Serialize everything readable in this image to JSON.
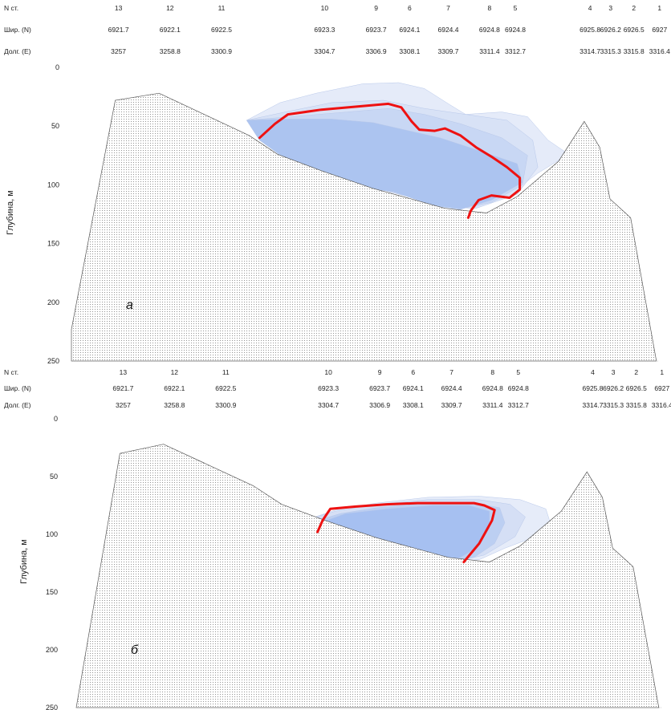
{
  "chart_data": [
    {
      "type": "area",
      "panel_label": "а",
      "header": {
        "row_labels": [
          "N ст.",
          "Шир. (N)",
          "Долг. (E)"
        ],
        "stations": [
          {
            "n": "13",
            "lat": "6921.7",
            "lon": "3257",
            "x": 0
          },
          {
            "n": "12",
            "lat": "6922.1",
            "lon": "3258.8",
            "x": 1
          },
          {
            "n": "11",
            "lat": "6922.5",
            "lon": "3300.9",
            "x": 2
          },
          {
            "n": "10",
            "lat": "6923.3",
            "lon": "3304.7",
            "x": 4
          },
          {
            "n": "9",
            "lat": "6923.7",
            "lon": "3306.9",
            "x": 5
          },
          {
            "n": "6",
            "lat": "6924.1",
            "lon": "3308.1",
            "x": 5.65
          },
          {
            "n": "7",
            "lat": "6924.4",
            "lon": "3309.7",
            "x": 6.4
          },
          {
            "n": "8",
            "lat": "6924.8",
            "lon": "3311.4",
            "x": 7.2
          },
          {
            "n": "5",
            "lat": "6924.8",
            "lon": "3312.7",
            "x": 7.7
          },
          {
            "n": "4",
            "lat": "6925.8",
            "lon": "3314.7",
            "x": 9.15
          },
          {
            "n": "3",
            "lat": "6926.2",
            "lon": "3315.3",
            "x": 9.55
          },
          {
            "n": "2",
            "lat": "6926.5",
            "lon": "3315.8",
            "x": 10.0
          },
          {
            "n": "1",
            "lat": "6927",
            "lon": "3316.4",
            "x": 10.5
          }
        ]
      },
      "ylabel": "Глубина, м",
      "ylim": [
        0,
        250
      ],
      "y_reversed": true,
      "yticks": [
        0,
        50,
        100,
        150,
        200,
        250
      ],
      "xlim": [
        -0.85,
        10.55
      ],
      "grid": false,
      "bottom": {
        "fill": "dotted",
        "outline": [
          [
            -0.85,
            223
          ],
          [
            0,
            28
          ],
          [
            0.85,
            22
          ],
          [
            2.6,
            58
          ],
          [
            3.15,
            74
          ],
          [
            4,
            88
          ],
          [
            5,
            103
          ],
          [
            6.4,
            120
          ],
          [
            7.2,
            124
          ],
          [
            7.8,
            110
          ],
          [
            8.6,
            80
          ],
          [
            9.1,
            46
          ],
          [
            9.4,
            68
          ],
          [
            9.6,
            112
          ],
          [
            10.0,
            128
          ],
          [
            10.5,
            250
          ]
        ]
      },
      "series": [
        {
          "color": "#e0e8f8",
          "opacity": 0.85,
          "points": [
            [
              2.55,
              45
            ],
            [
              3.2,
              30
            ],
            [
              3.9,
              22
            ],
            [
              4.8,
              14
            ],
            [
              5.5,
              13
            ],
            [
              6.0,
              18
            ],
            [
              6.5,
              32
            ],
            [
              6.8,
              40
            ],
            [
              7.5,
              38
            ],
            [
              8.0,
              42
            ],
            [
              8.4,
              62
            ],
            [
              8.8,
              74
            ],
            [
              8.2,
              90
            ],
            [
              7.6,
              110
            ],
            [
              6.9,
              120
            ],
            [
              6.4,
              118
            ],
            [
              5.5,
              108
            ],
            [
              4.8,
              100
            ],
            [
              4.1,
              88
            ],
            [
              3.3,
              76
            ],
            [
              2.8,
              62
            ]
          ]
        },
        {
          "color": "#d6e1f6",
          "opacity": 0.85,
          "points": [
            [
              2.55,
              45
            ],
            [
              3.3,
              38
            ],
            [
              4.2,
              30
            ],
            [
              5.2,
              28
            ],
            [
              6.0,
              35
            ],
            [
              6.8,
              40
            ],
            [
              7.6,
              45
            ],
            [
              8.1,
              62
            ],
            [
              8.2,
              85
            ],
            [
              7.8,
              108
            ],
            [
              7.0,
              120
            ],
            [
              6.4,
              118
            ],
            [
              5.5,
              108
            ],
            [
              4.8,
              100
            ],
            [
              4.1,
              88
            ],
            [
              3.3,
              76
            ],
            [
              2.8,
              62
            ]
          ]
        },
        {
          "color": "#c6d5f3",
          "opacity": 0.85,
          "points": [
            [
              2.55,
              45
            ],
            [
              3.4,
              42
            ],
            [
              4.5,
              38
            ],
            [
              5.3,
              35
            ],
            [
              6.0,
              40
            ],
            [
              6.7,
              48
            ],
            [
              7.5,
              60
            ],
            [
              8.0,
              75
            ],
            [
              7.9,
              100
            ],
            [
              7.3,
              115
            ],
            [
              6.7,
              120
            ],
            [
              6.1,
              116
            ],
            [
              5.4,
              106
            ],
            [
              4.7,
              100
            ],
            [
              4.0,
              88
            ],
            [
              3.3,
              76
            ],
            [
              2.8,
              62
            ]
          ]
        },
        {
          "color": "#a9c2f0",
          "opacity": 0.9,
          "points": [
            [
              2.55,
              45
            ],
            [
              3.3,
              44
            ],
            [
              4.2,
              44
            ],
            [
              5.0,
              47
            ],
            [
              5.6,
              53
            ],
            [
              6.3,
              60
            ],
            [
              7.0,
              70
            ],
            [
              7.8,
              82
            ],
            [
              7.9,
              98
            ],
            [
              7.3,
              113
            ],
            [
              6.7,
              121
            ],
            [
              6.2,
              118
            ],
            [
              5.4,
              106
            ],
            [
              4.7,
              102
            ],
            [
              4.0,
              90
            ],
            [
              3.3,
              78
            ],
            [
              2.8,
              62
            ]
          ]
        }
      ],
      "contour": {
        "color": "#ee1111",
        "points": [
          [
            2.8,
            60
          ],
          [
            3.1,
            48
          ],
          [
            3.35,
            40
          ],
          [
            4.0,
            36
          ],
          [
            5.3,
            31
          ],
          [
            5.55,
            34
          ],
          [
            5.75,
            46
          ],
          [
            5.9,
            53
          ],
          [
            6.2,
            54
          ],
          [
            6.4,
            52
          ],
          [
            6.7,
            58
          ],
          [
            7.0,
            68
          ],
          [
            7.3,
            76
          ],
          [
            7.6,
            85
          ],
          [
            7.85,
            94
          ],
          [
            7.85,
            104
          ],
          [
            7.65,
            111
          ],
          [
            7.3,
            109
          ],
          [
            7.05,
            113
          ],
          [
            6.9,
            122
          ],
          [
            6.85,
            128
          ]
        ]
      }
    },
    {
      "type": "area",
      "panel_label": "б",
      "header": {
        "row_labels": [
          "N ст.",
          "Шир. (N)",
          "Долг. (E)"
        ],
        "stations": [
          {
            "n": "13",
            "lat": "6921.7",
            "lon": "3257",
            "x": 0
          },
          {
            "n": "12",
            "lat": "6922.1",
            "lon": "3258.8",
            "x": 1
          },
          {
            "n": "11",
            "lat": "6922.5",
            "lon": "3300.9",
            "x": 2
          },
          {
            "n": "10",
            "lat": "6923.3",
            "lon": "3304.7",
            "x": 4
          },
          {
            "n": "9",
            "lat": "6923.7",
            "lon": "3306.9",
            "x": 5
          },
          {
            "n": "6",
            "lat": "6924.1",
            "lon": "3308.1",
            "x": 5.65
          },
          {
            "n": "7",
            "lat": "6924.4",
            "lon": "3309.7",
            "x": 6.4
          },
          {
            "n": "8",
            "lat": "6924.8",
            "lon": "3311.4",
            "x": 7.2
          },
          {
            "n": "5",
            "lat": "6924.8",
            "lon": "3312.7",
            "x": 7.7
          },
          {
            "n": "4",
            "lat": "6925.8",
            "lon": "3314.7",
            "x": 9.15
          },
          {
            "n": "3",
            "lat": "6926.2",
            "lon": "3315.3",
            "x": 9.55
          },
          {
            "n": "2",
            "lat": "6926.5",
            "lon": "3315.8",
            "x": 10.0
          },
          {
            "n": "1",
            "lat": "6927",
            "lon": "3316.4",
            "x": 10.5
          }
        ]
      },
      "ylabel": "Глубина, м",
      "ylim": [
        0,
        250
      ],
      "y_reversed": true,
      "yticks": [
        0,
        50,
        100,
        150,
        200,
        250
      ],
      "xlim": [
        -0.85,
        10.55
      ],
      "grid": false,
      "bottom": {
        "fill": "dotted",
        "outline": [
          [
            -0.85,
            250
          ],
          [
            0,
            30
          ],
          [
            0.85,
            22
          ],
          [
            2.6,
            58
          ],
          [
            3.15,
            74
          ],
          [
            4,
            88
          ],
          [
            5,
            103
          ],
          [
            6.4,
            120
          ],
          [
            7.2,
            124
          ],
          [
            7.8,
            110
          ],
          [
            8.6,
            80
          ],
          [
            9.1,
            46
          ],
          [
            9.4,
            68
          ],
          [
            9.6,
            112
          ],
          [
            10.0,
            128
          ],
          [
            10.5,
            250
          ]
        ]
      },
      "series": [
        {
          "color": "#e2e9f8",
          "opacity": 0.85,
          "points": [
            [
              3.6,
              88
            ],
            [
              4.2,
              79
            ],
            [
              5.0,
              73
            ],
            [
              6.0,
              68
            ],
            [
              7.0,
              67
            ],
            [
              7.8,
              70
            ],
            [
              8.3,
              78
            ],
            [
              8.4,
              92
            ],
            [
              8.1,
              102
            ],
            [
              7.5,
              112
            ],
            [
              7.0,
              122
            ],
            [
              6.5,
              123
            ],
            [
              5.8,
              116
            ],
            [
              5.3,
              108
            ],
            [
              4.7,
              101
            ],
            [
              4.0,
              96
            ]
          ]
        },
        {
          "color": "#d1ddf5",
          "opacity": 0.85,
          "points": [
            [
              3.6,
              88
            ],
            [
              4.2,
              80
            ],
            [
              5.0,
              74
            ],
            [
              6.0,
              70
            ],
            [
              7.0,
              70
            ],
            [
              7.6,
              74
            ],
            [
              7.9,
              85
            ],
            [
              7.7,
              102
            ],
            [
              7.1,
              118
            ],
            [
              6.6,
              123
            ],
            [
              5.8,
              116
            ],
            [
              5.3,
              108
            ],
            [
              4.7,
              101
            ],
            [
              4.0,
              96
            ]
          ]
        },
        {
          "color": "#b9cdf2",
          "opacity": 0.9,
          "points": [
            [
              3.7,
              90
            ],
            [
              4.3,
              82
            ],
            [
              5.0,
              77
            ],
            [
              6.0,
              73
            ],
            [
              6.9,
              73
            ],
            [
              7.4,
              77
            ],
            [
              7.5,
              90
            ],
            [
              7.3,
              108
            ],
            [
              6.9,
              120
            ],
            [
              6.5,
              122
            ],
            [
              5.8,
              116
            ],
            [
              5.3,
              108
            ],
            [
              4.7,
              102
            ],
            [
              4.0,
              97
            ]
          ]
        },
        {
          "color": "#a4bff0",
          "opacity": 0.95,
          "points": [
            [
              3.9,
              90
            ],
            [
              4.4,
              82
            ],
            [
              5.2,
              78
            ],
            [
              6.1,
              75
            ],
            [
              6.8,
              75
            ],
            [
              7.2,
              80
            ],
            [
              7.2,
              95
            ],
            [
              6.9,
              113
            ],
            [
              6.6,
              121
            ],
            [
              6.2,
              119
            ],
            [
              5.6,
              113
            ],
            [
              5.0,
              106
            ],
            [
              4.4,
              101
            ],
            [
              4.0,
              98
            ]
          ]
        }
      ],
      "contour": {
        "color": "#ee1111",
        "points": [
          [
            3.85,
            98
          ],
          [
            3.95,
            88
          ],
          [
            4.1,
            78
          ],
          [
            4.6,
            76
          ],
          [
            5.2,
            74
          ],
          [
            5.8,
            73
          ],
          [
            6.6,
            73
          ],
          [
            6.9,
            73
          ],
          [
            7.1,
            75
          ],
          [
            7.3,
            79
          ],
          [
            7.25,
            88
          ],
          [
            7.1,
            100
          ],
          [
            7.0,
            108
          ],
          [
            6.85,
            116
          ],
          [
            6.7,
            124
          ]
        ]
      }
    }
  ]
}
